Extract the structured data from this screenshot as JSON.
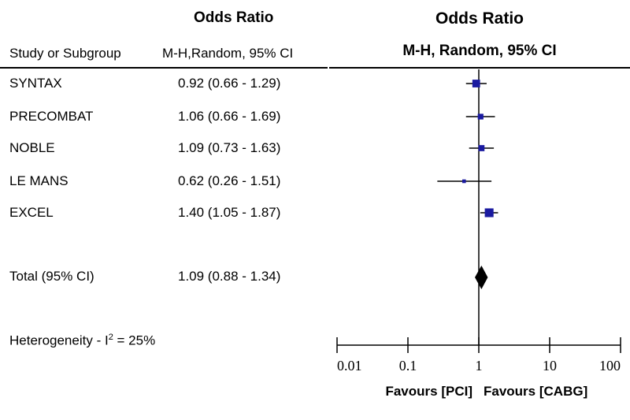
{
  "table": {
    "col_odds_ratio": "Odds Ratio",
    "col_study": "Study or Subgroup",
    "col_method": "M-H,Random, 95% CI",
    "rows": [
      {
        "study": "SYNTAX",
        "ci_text": "0.92 (0.66 - 1.29)"
      },
      {
        "study": "PRECOMBAT",
        "ci_text": "1.06 (0.66 - 1.69)"
      },
      {
        "study": "NOBLE",
        "ci_text": "1.09 (0.73 - 1.63)"
      },
      {
        "study": "LE MANS",
        "ci_text": "0.62 (0.26 - 1.51)"
      },
      {
        "study": "EXCEL",
        "ci_text": "1.40 (1.05 - 1.87)"
      }
    ],
    "total": {
      "label": "Total (95% CI)",
      "ci_text": "1.09 (0.88 - 1.34)"
    },
    "heterogeneity": {
      "prefix": "Heterogeneity -  I",
      "sup": "2",
      "suffix": " = 25%"
    }
  },
  "chart_data": {
    "type": "forest",
    "title": "Odds Ratio",
    "subtitle": "M-H, Random, 95% CI",
    "scale": "log",
    "xlim": [
      0.01,
      100
    ],
    "ticks": [
      0.01,
      0.1,
      1,
      10,
      100
    ],
    "tick_labels": [
      "0.01",
      "0.1",
      "1",
      "10",
      "100"
    ],
    "reference_line": 1,
    "xlabel_left": "Favours [PCI]",
    "xlabel_right": "Favours [CABG]",
    "marker_color": "#1a1aa0",
    "studies": [
      {
        "name": "SYNTAX",
        "or": 0.92,
        "lower": 0.66,
        "upper": 1.29,
        "weight": 3
      },
      {
        "name": "PRECOMBAT",
        "or": 1.06,
        "lower": 0.66,
        "upper": 1.69,
        "weight": 2
      },
      {
        "name": "NOBLE",
        "or": 1.09,
        "lower": 0.73,
        "upper": 1.63,
        "weight": 2.2
      },
      {
        "name": "LE MANS",
        "or": 0.62,
        "lower": 0.26,
        "upper": 1.51,
        "weight": 1
      },
      {
        "name": "EXCEL",
        "or": 1.4,
        "lower": 1.05,
        "upper": 1.87,
        "weight": 3.5
      }
    ],
    "total": {
      "name": "Total (95% CI)",
      "or": 1.09,
      "lower": 0.88,
      "upper": 1.34
    }
  }
}
